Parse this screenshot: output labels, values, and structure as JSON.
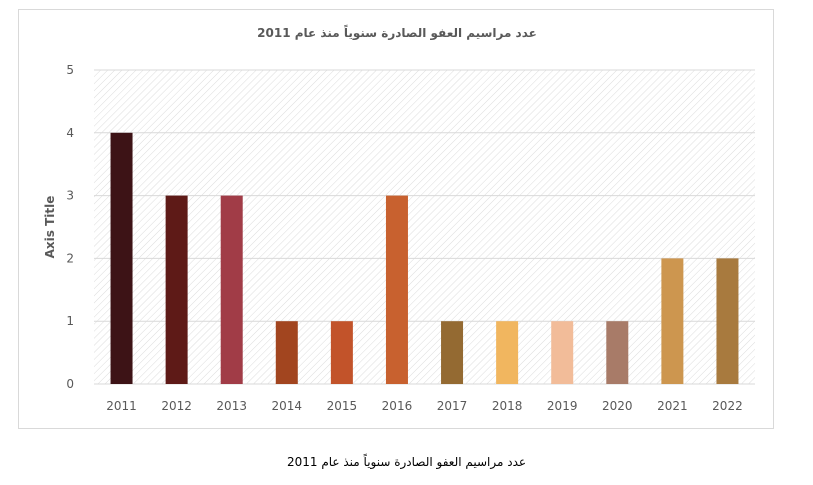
{
  "chart_data": {
    "type": "bar",
    "title": "عدد مراسيم العفو الصادرة سنوياً منذ عام 2011",
    "xlabel": "",
    "ylabel": "Axis Title",
    "ylim": [
      0,
      5
    ],
    "yticks": [
      0,
      1,
      2,
      3,
      4,
      5
    ],
    "grid": true,
    "legend": "none",
    "categories": [
      "2011",
      "2012",
      "2013",
      "2014",
      "2015",
      "2016",
      "2017",
      "2018",
      "2019",
      "2020",
      "2021",
      "2022"
    ],
    "values": [
      4,
      3,
      3,
      1,
      1,
      3,
      1,
      1,
      1,
      1,
      2,
      2
    ],
    "colors": [
      "#3d1316",
      "#5e1a17",
      "#a13c47",
      "#a2451f",
      "#c2532a",
      "#c8612f",
      "#946a32",
      "#f1b65f",
      "#f2bc99",
      "#a87b68",
      "#cd964f",
      "#a87a3e"
    ]
  },
  "caption": "عدد مراسيم العفو الصادرة سنوياً منذ عام 2011",
  "style": {
    "axis_text_color": "#595959",
    "gridline_color": "#d9d9d9",
    "hatch_color": "#d9d9d9"
  }
}
